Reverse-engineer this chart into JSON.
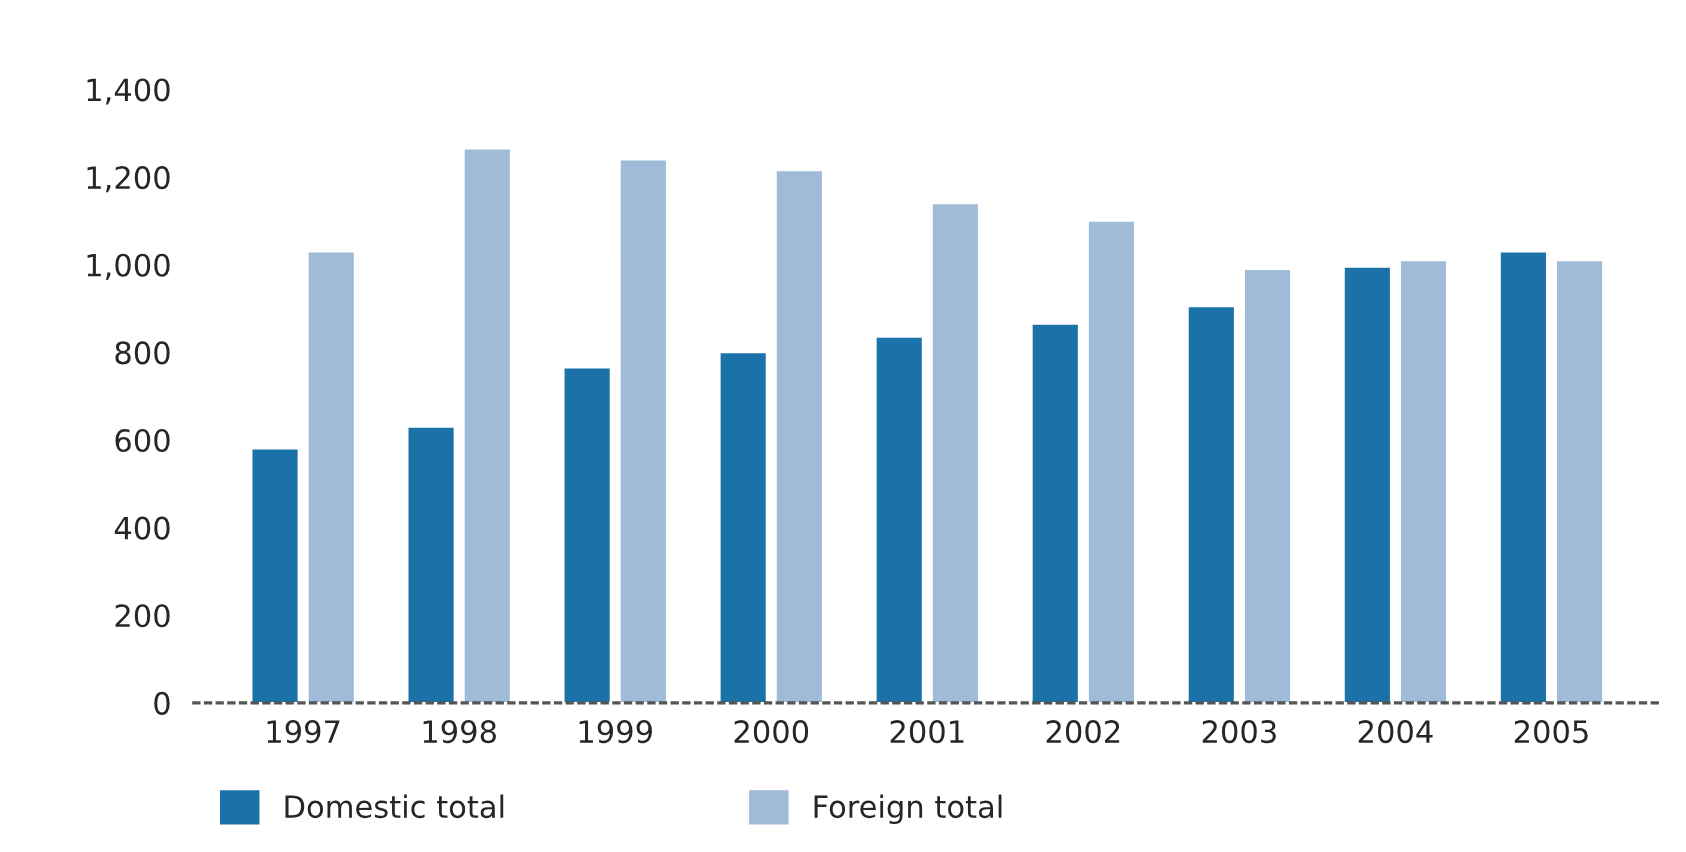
{
  "chart_data": {
    "type": "bar",
    "categories": [
      "1997",
      "1998",
      "1999",
      "2000",
      "2001",
      "2002",
      "2003",
      "2004",
      "2005"
    ],
    "series": [
      {
        "name": "Domestic total",
        "color": "#1a72a8",
        "values": [
          580,
          630,
          765,
          800,
          835,
          865,
          905,
          995,
          1030
        ]
      },
      {
        "name": "Foreign total",
        "color": "#9fbbd7",
        "values": [
          1030,
          1265,
          1240,
          1215,
          1140,
          1100,
          990,
          1010,
          1010
        ]
      }
    ],
    "ylim": [
      0,
      1400
    ],
    "yticks": [
      0,
      200,
      400,
      600,
      800,
      {
        "value": 1000,
        "label": "1,000"
      },
      {
        "value": 1200,
        "label": "1,200"
      },
      {
        "value": 1400,
        "label": "1,400"
      }
    ],
    "grid": false,
    "legend": "bottom left"
  }
}
